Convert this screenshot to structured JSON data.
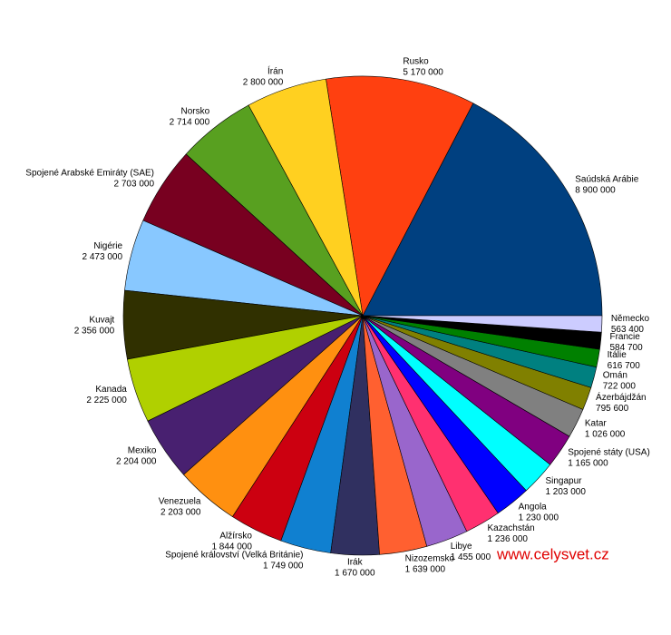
{
  "chart_data": {
    "type": "pie",
    "categories": [
      "Saúdská Arábie",
      "Rusko",
      "Írán",
      "Norsko",
      "Spojené Arabské Emiráty (SAE)",
      "Nigérie",
      "Kuvajt",
      "Kanada",
      "Mexiko",
      "Venezuela",
      "Alžírsko",
      "Spojené království (Velká Británie)",
      "Irák",
      "Nizozemsko",
      "Libye",
      "Kazachstán",
      "Angola",
      "Singapur",
      "Spojené státy (USA)",
      "Katar",
      "Ázerbájdžán",
      "Omán",
      "Itálie",
      "Francie",
      "Německo"
    ],
    "values": [
      8900000,
      5170000,
      2800000,
      2714000,
      2703000,
      2473000,
      2356000,
      2225000,
      2204000,
      2203000,
      1844000,
      1749000,
      1670000,
      1639000,
      1455000,
      1236000,
      1230000,
      1203000,
      1165000,
      1026000,
      795600,
      722000,
      616700,
      584700,
      563400
    ],
    "value_labels": [
      "8 900 000",
      "5 170 000",
      "2 800 000",
      "2 714 000",
      "2 703 000",
      "2 473 000",
      "2 356 000",
      "2 225 000",
      "2 204 000",
      "2 203 000",
      "1 844 000",
      "1 749 000",
      "1 670 000",
      "1 639 000",
      "1 455 000",
      "1 236 000",
      "1 230 000",
      "1 203 000",
      "1 165 000",
      "1 026 000",
      "795 600",
      "722 000",
      "616 700",
      "584 700",
      "563 400"
    ],
    "colors": [
      "#004080",
      "#ff4010",
      "#ffd020",
      "#58a020",
      "#780020",
      "#88c8ff",
      "#303000",
      "#b0d000",
      "#482070",
      "#ff9010",
      "#cc0010",
      "#1080d0",
      "#303060",
      "#ff6030",
      "#9966cc",
      "#ff3070",
      "#0000ff",
      "#00ffff",
      "#800080",
      "#808080",
      "#808000",
      "#008080",
      "#008000",
      "#000000",
      "#ccccff"
    ],
    "watermark": "www.celysvet.cz"
  }
}
